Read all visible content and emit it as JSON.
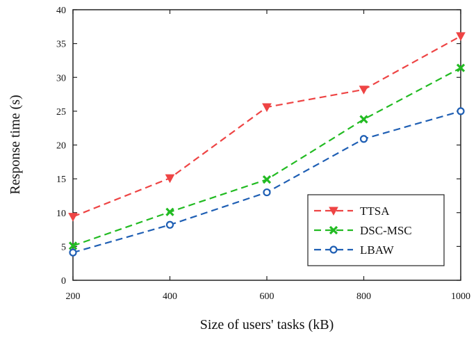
{
  "chart_data": {
    "type": "line",
    "title": "",
    "xlabel": "Size of users' tasks (kB)",
    "ylabel": "Response time (s)",
    "x": [
      200,
      400,
      600,
      800,
      1000
    ],
    "xticks": [
      "200",
      "400",
      "600",
      "800",
      "1000"
    ],
    "xlim": [
      200,
      1000
    ],
    "ylim": [
      0,
      40
    ],
    "yticks": [
      "0",
      "5",
      "10",
      "15",
      "20",
      "25",
      "30",
      "35",
      "40"
    ],
    "grid": false,
    "legend_position": "bottom-right",
    "series": [
      {
        "name": "TTSA",
        "values": [
          9.4,
          15.1,
          25.6,
          28.2,
          36.1
        ],
        "color": "#ee4444",
        "marker": "triangle-down"
      },
      {
        "name": "DSC-MSC",
        "values": [
          5.1,
          10.1,
          14.9,
          23.8,
          31.4
        ],
        "color": "#22bb22",
        "marker": "x"
      },
      {
        "name": "LBAW",
        "values": [
          4.1,
          8.2,
          13.0,
          20.9,
          25.0
        ],
        "color": "#1f5fb4",
        "marker": "circle"
      }
    ]
  }
}
